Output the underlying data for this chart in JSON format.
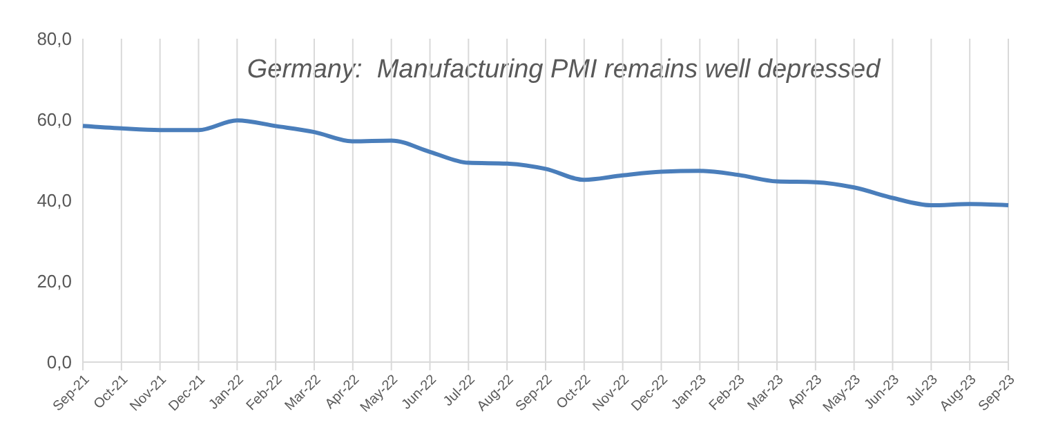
{
  "chart_data": {
    "type": "line",
    "title": "Germany:  Manufacturing PMI remains well depressed",
    "categories": [
      "Sep-21",
      "Oct-21",
      "Nov-21",
      "Dec-21",
      "Jan-22",
      "Feb-22",
      "Mar-22",
      "Apr-22",
      "May-22",
      "Jun-22",
      "Jul-22",
      "Aug-22",
      "Sep-22",
      "Oct-22",
      "Nov-22",
      "Dec-22",
      "Jan-23",
      "Feb-23",
      "Mar-23",
      "Apr-23",
      "May-23",
      "Jun-23",
      "Jul-23",
      "Aug-23",
      "Sep-23"
    ],
    "series": [
      {
        "color": "#4a7ebb",
        "values": [
          58.4,
          57.8,
          57.4,
          57.4,
          59.8,
          58.4,
          56.9,
          54.6,
          54.8,
          52.0,
          49.3,
          49.1,
          47.8,
          45.1,
          46.2,
          47.1,
          47.3,
          46.3,
          44.7,
          44.5,
          43.2,
          40.6,
          38.8,
          39.1,
          38.8
        ]
      }
    ],
    "ylim": [
      0,
      80
    ],
    "yticks": [
      {
        "value": 0,
        "label": "0,0"
      },
      {
        "value": 20,
        "label": "20,0"
      },
      {
        "value": 40,
        "label": "40,0"
      },
      {
        "value": 60,
        "label": "60,0"
      },
      {
        "value": 80,
        "label": "80,0"
      }
    ],
    "grid": "x",
    "legend": false,
    "marker": "none",
    "line_style": "solid"
  }
}
